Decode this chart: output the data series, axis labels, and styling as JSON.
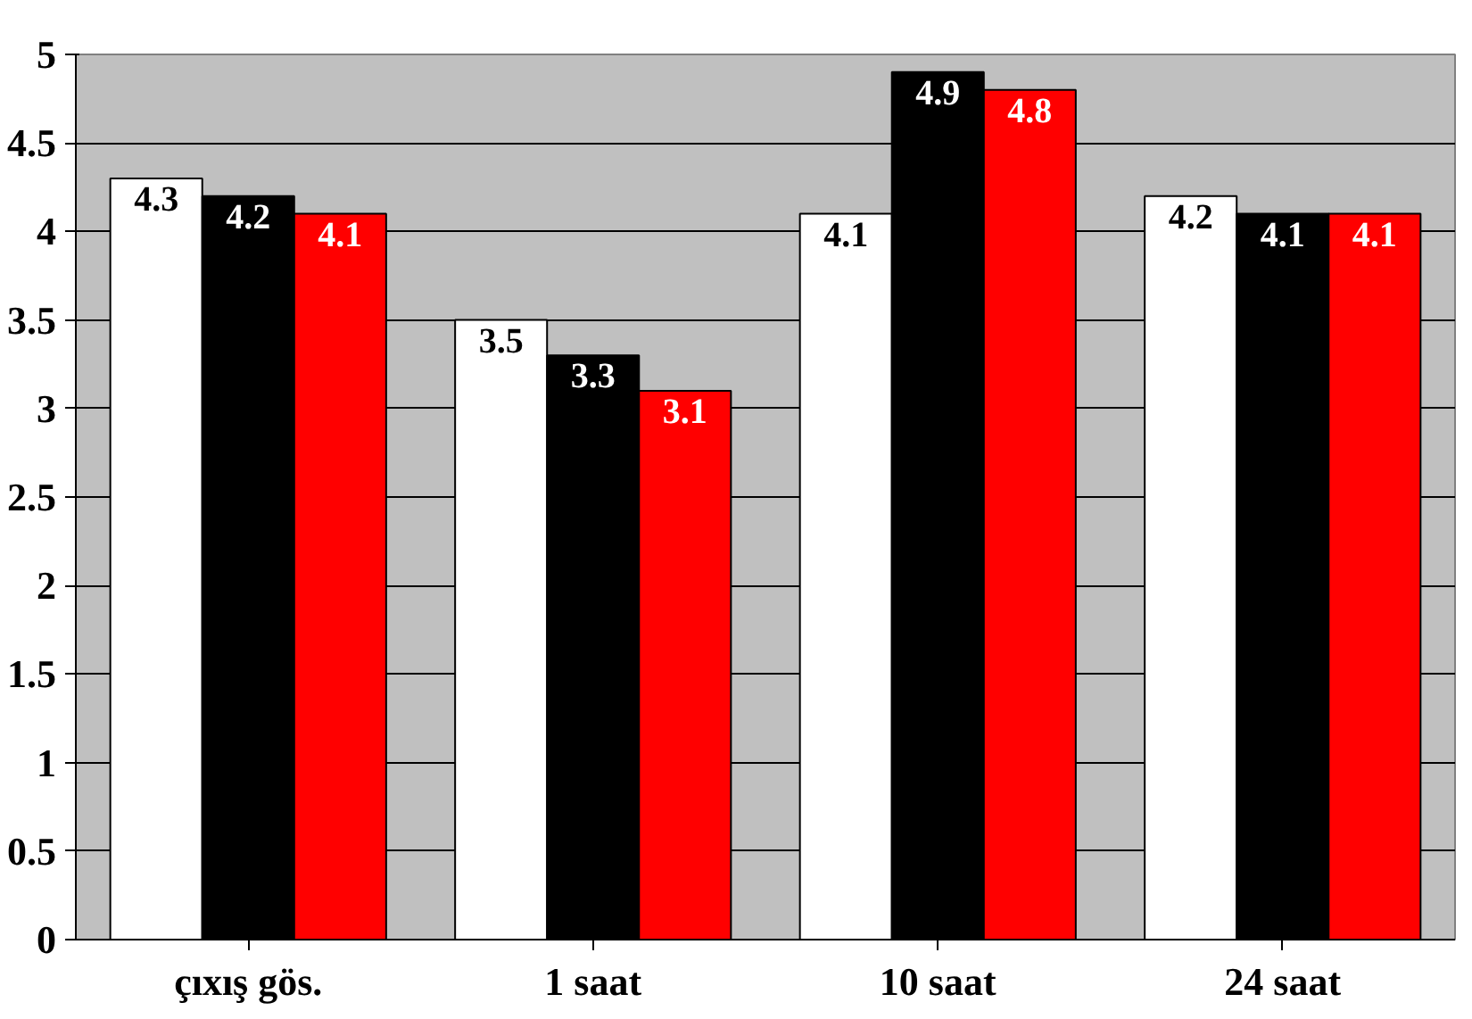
{
  "chart_data": {
    "type": "bar",
    "categories": [
      "çıxış gös.",
      "1 saat",
      "10 saat",
      "24 saat"
    ],
    "series": [
      {
        "color": "#ffffff",
        "values": [
          4.3,
          3.5,
          4.1,
          4.2
        ]
      },
      {
        "color": "#000000",
        "values": [
          4.2,
          3.3,
          4.9,
          4.1
        ]
      },
      {
        "color": "#ff0000",
        "values": [
          4.1,
          3.1,
          4.8,
          4.1
        ]
      }
    ],
    "ylim": [
      0,
      5
    ],
    "yticks": [
      0,
      0.5,
      1,
      1.5,
      2,
      2.5,
      3,
      3.5,
      4,
      4.5,
      5
    ],
    "grid": "y",
    "data_labels": true
  }
}
